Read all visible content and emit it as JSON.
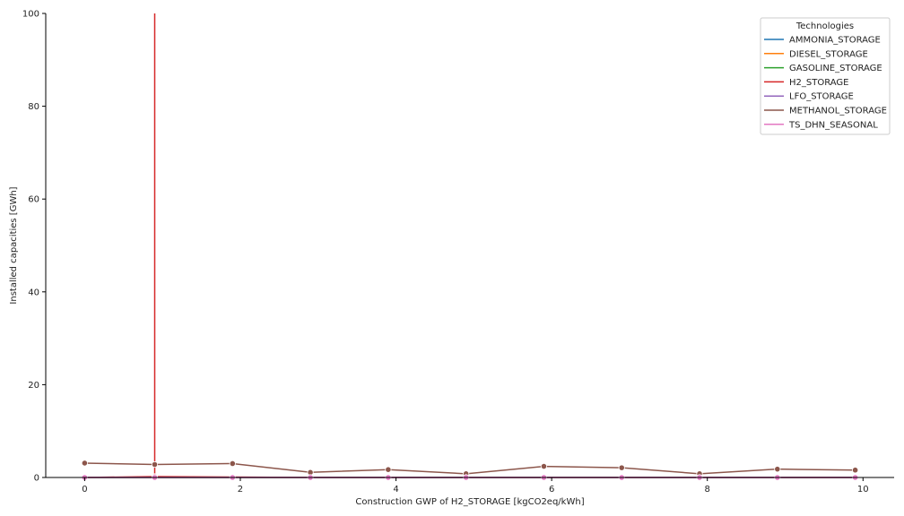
{
  "chart_data": {
    "type": "line",
    "xlabel": "Construction GWP of H2_STORAGE [kgCO2eq/kWh]",
    "ylabel": "Installed capacities [GWh]",
    "xlim": [
      -0.5,
      10.4
    ],
    "ylim": [
      0,
      100
    ],
    "xticks": [
      0,
      2,
      4,
      6,
      8,
      10
    ],
    "yticks": [
      0,
      20,
      40,
      60,
      80,
      100
    ],
    "grid": false,
    "legend": {
      "title": "Technologies",
      "placement": "top-right"
    },
    "x": [
      0,
      0.9,
      1.9,
      2.9,
      3.9,
      4.9,
      5.9,
      6.9,
      7.9,
      8.9,
      9.9
    ],
    "series": [
      {
        "name": "AMMONIA_STORAGE",
        "color": "#1f77b4",
        "values": [
          0,
          0,
          0,
          0,
          0,
          0,
          0,
          0,
          0,
          0,
          0
        ]
      },
      {
        "name": "DIESEL_STORAGE",
        "color": "#ff7f0e",
        "values": [
          0,
          0,
          0,
          0,
          0,
          0,
          0,
          0,
          0,
          0,
          0
        ]
      },
      {
        "name": "GASOLINE_STORAGE",
        "color": "#2ca02c",
        "values": [
          0,
          0,
          0,
          0,
          0,
          0,
          0,
          0,
          0,
          0,
          0
        ]
      },
      {
        "name": "H2_STORAGE",
        "color": "#d62728",
        "values": [
          0,
          0.2,
          0.1,
          0,
          0,
          0,
          0,
          0,
          0,
          0,
          0
        ],
        "spike": {
          "x": 0.9,
          "from": 0,
          "to": 100
        }
      },
      {
        "name": "LFO_STORAGE",
        "color": "#9467bd",
        "values": [
          0,
          0,
          0,
          0,
          0,
          0,
          0,
          0,
          0,
          0,
          0
        ]
      },
      {
        "name": "METHANOL_STORAGE",
        "color": "#8c564b",
        "values": [
          3.1,
          2.8,
          3.0,
          1.1,
          1.7,
          0.8,
          2.4,
          2.1,
          0.8,
          1.8,
          1.6
        ]
      },
      {
        "name": "TS_DHN_SEASONAL",
        "color": "#e377c2",
        "values": [
          0,
          0,
          0,
          0,
          0,
          0,
          0,
          0,
          0,
          0,
          0
        ]
      }
    ]
  }
}
